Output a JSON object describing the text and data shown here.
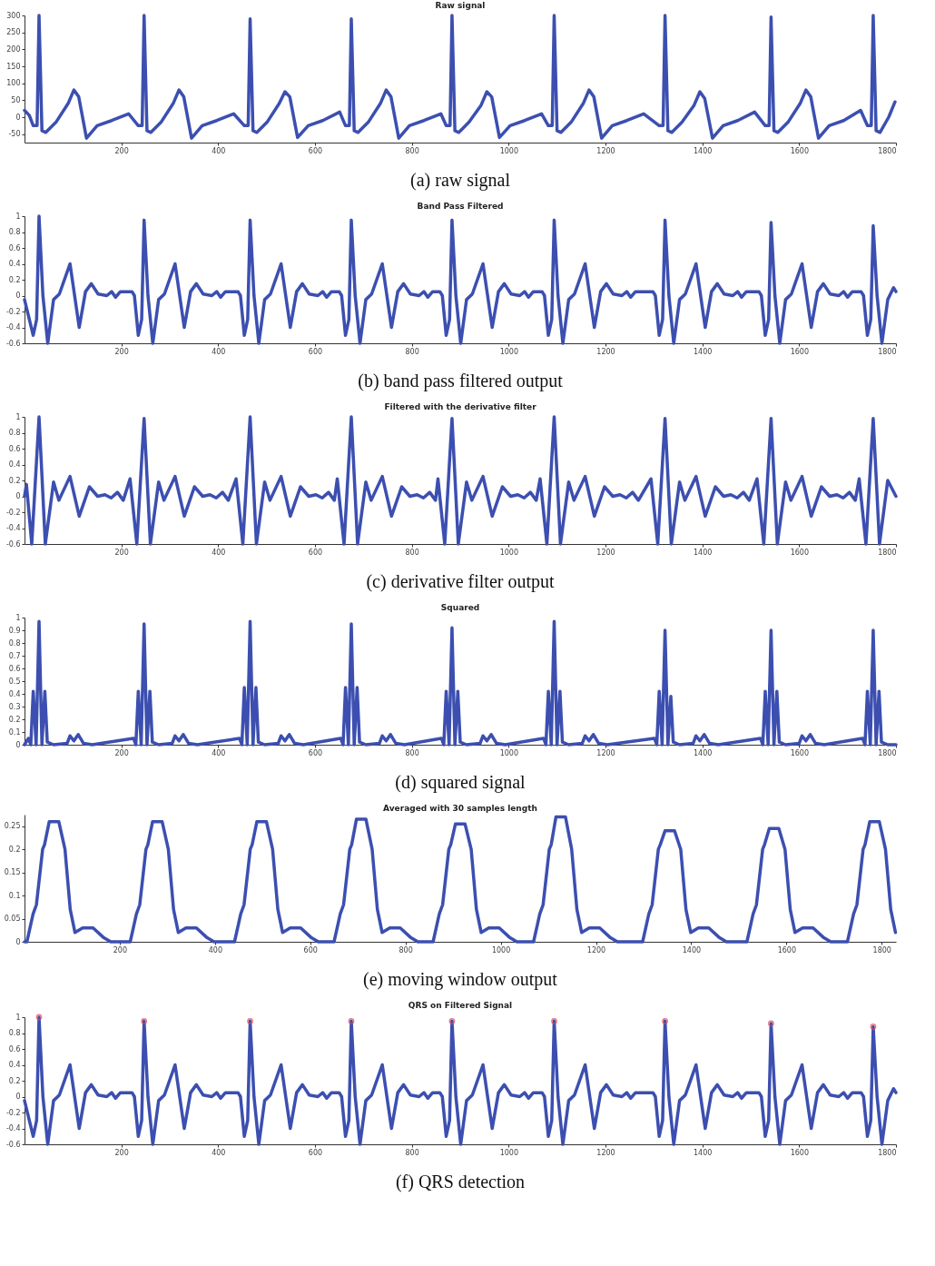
{
  "chart_data": [
    {
      "type": "line",
      "title": "Raw signal",
      "annotations": [
        "(a) raw signal"
      ],
      "xlim": [
        0,
        1800
      ],
      "xticks": [
        200,
        400,
        600,
        800,
        1000,
        1200,
        1400,
        1600,
        1800
      ],
      "ylim": [
        -75,
        300
      ],
      "yticks": [
        -50,
        0,
        50,
        100,
        150,
        200,
        250,
        300
      ],
      "series": [
        {
          "color": "#3c4fb0",
          "x": [
            0,
            10,
            18,
            26,
            30,
            36,
            44,
            65,
            90,
            102,
            112,
            128,
            150,
            180,
            215,
            235,
            243,
            247,
            253,
            261,
            282,
            307,
            319,
            329,
            345,
            367,
            397,
            432,
            454,
            462,
            466,
            472,
            480,
            501,
            526,
            538,
            548,
            564,
            586,
            616,
            651,
            663,
            671,
            675,
            681,
            689,
            710,
            735,
            747,
            757,
            773,
            795,
            825,
            860,
            871,
            879,
            883,
            889,
            897,
            918,
            943,
            955,
            965,
            981,
            1003,
            1033,
            1068,
            1082,
            1090,
            1094,
            1100,
            1108,
            1129,
            1154,
            1166,
            1176,
            1192,
            1214,
            1244,
            1279,
            1311,
            1319,
            1323,
            1329,
            1337,
            1358,
            1383,
            1395,
            1405,
            1421,
            1443,
            1473,
            1508,
            1530,
            1538,
            1542,
            1548,
            1556,
            1577,
            1602,
            1614,
            1624,
            1640,
            1662,
            1692,
            1727,
            1741,
            1749,
            1753,
            1759,
            1767,
            1785,
            1798
          ],
          "values": [
            20,
            5,
            -25,
            -25,
            300,
            -40,
            -45,
            -15,
            40,
            80,
            60,
            -62,
            -25,
            -10,
            10,
            -25,
            -25,
            300,
            -40,
            -45,
            -15,
            40,
            80,
            60,
            -62,
            -25,
            -10,
            10,
            -25,
            -25,
            290,
            -40,
            -45,
            -15,
            40,
            75,
            60,
            -60,
            -25,
            -10,
            15,
            -25,
            -25,
            290,
            -40,
            -45,
            -15,
            40,
            80,
            60,
            -62,
            -25,
            -10,
            10,
            -25,
            -25,
            300,
            -40,
            -45,
            -15,
            35,
            75,
            60,
            -60,
            -25,
            -10,
            10,
            -25,
            -25,
            300,
            -40,
            -45,
            -15,
            40,
            80,
            60,
            -62,
            -25,
            -10,
            10,
            -25,
            -25,
            300,
            -40,
            -45,
            -15,
            35,
            75,
            55,
            -62,
            -25,
            -10,
            15,
            -25,
            -25,
            295,
            -40,
            -45,
            -15,
            40,
            80,
            60,
            -62,
            -25,
            -10,
            20,
            -25,
            -25,
            300,
            -40,
            -45,
            0,
            45
          ]
        }
      ]
    },
    {
      "type": "line",
      "title": "Band Pass Filtered",
      "annotations": [
        "(b) band pass filtered output"
      ],
      "xlim": [
        0,
        1800
      ],
      "xticks": [
        200,
        400,
        600,
        800,
        1000,
        1200,
        1400,
        1600,
        1800
      ],
      "ylim": [
        -0.6,
        1
      ],
      "yticks": [
        -0.6,
        -0.4,
        -0.2,
        0,
        0.2,
        0.4,
        0.6,
        0.8,
        1
      ],
      "series": [
        {
          "color": "#3c4fb0",
          "x": [
            0,
            18,
            25,
            30,
            38,
            48,
            60,
            72,
            94,
            113,
            126,
            138,
            152,
            170,
            180,
            188,
            198,
            222,
            227,
            235,
            242,
            247,
            255,
            265,
            277,
            289,
            311,
            330,
            343,
            355,
            369,
            387,
            397,
            405,
            415,
            441,
            446,
            454,
            461,
            466,
            474,
            484,
            496,
            508,
            530,
            549,
            562,
            574,
            588,
            606,
            616,
            624,
            634,
            650,
            655,
            663,
            670,
            675,
            683,
            693,
            705,
            717,
            739,
            758,
            771,
            783,
            797,
            815,
            825,
            833,
            843,
            858,
            863,
            871,
            878,
            883,
            891,
            901,
            913,
            925,
            947,
            966,
            979,
            991,
            1005,
            1023,
            1033,
            1041,
            1051,
            1069,
            1074,
            1082,
            1089,
            1094,
            1102,
            1112,
            1124,
            1136,
            1158,
            1177,
            1190,
            1202,
            1216,
            1234,
            1244,
            1252,
            1262,
            1298,
            1303,
            1311,
            1318,
            1323,
            1331,
            1341,
            1353,
            1365,
            1387,
            1406,
            1419,
            1431,
            1445,
            1463,
            1473,
            1481,
            1491,
            1517,
            1522,
            1530,
            1537,
            1542,
            1550,
            1560,
            1572,
            1584,
            1606,
            1625,
            1638,
            1650,
            1664,
            1682,
            1692,
            1700,
            1710,
            1728,
            1733,
            1741,
            1748,
            1753,
            1761,
            1771,
            1783,
            1795,
            1800
          ],
          "values": [
            -0.05,
            -0.5,
            -0.3,
            1,
            0,
            -0.6,
            -0.05,
            0.02,
            0.4,
            -0.4,
            0.05,
            0.15,
            0.02,
            0,
            0.05,
            -0.02,
            0.05,
            0.05,
            0,
            -0.5,
            -0.3,
            0.95,
            0,
            -0.6,
            -0.05,
            0.02,
            0.4,
            -0.4,
            0.05,
            0.15,
            0.02,
            0,
            0.05,
            -0.02,
            0.05,
            0.05,
            0,
            -0.5,
            -0.3,
            0.95,
            0,
            -0.6,
            -0.05,
            0.02,
            0.4,
            -0.4,
            0.05,
            0.15,
            0.02,
            0,
            0.05,
            -0.02,
            0.05,
            0.05,
            0,
            -0.5,
            -0.3,
            0.95,
            0,
            -0.6,
            -0.05,
            0.02,
            0.4,
            -0.4,
            0.05,
            0.15,
            0.02,
            0,
            0.05,
            -0.02,
            0.05,
            0.05,
            0,
            -0.5,
            -0.3,
            0.95,
            0,
            -0.6,
            -0.05,
            0.02,
            0.4,
            -0.4,
            0.05,
            0.15,
            0.02,
            0,
            0.05,
            -0.02,
            0.05,
            0.05,
            0,
            -0.5,
            -0.3,
            0.95,
            0,
            -0.6,
            -0.05,
            0.02,
            0.4,
            -0.4,
            0.05,
            0.15,
            0.02,
            0,
            0.05,
            -0.02,
            0.05,
            0.05,
            0,
            -0.5,
            -0.3,
            0.95,
            0,
            -0.6,
            -0.05,
            0.02,
            0.4,
            -0.4,
            0.05,
            0.15,
            0.02,
            0,
            0.05,
            -0.02,
            0.05,
            0.05,
            0,
            -0.5,
            -0.3,
            0.92,
            0,
            -0.6,
            -0.05,
            0.02,
            0.4,
            -0.4,
            0.05,
            0.15,
            0.02,
            0,
            0.05,
            -0.02,
            0.05,
            0.05,
            0,
            -0.5,
            -0.3,
            0.88,
            0,
            -0.6,
            -0.05,
            0.1,
            0.05
          ]
        }
      ]
    },
    {
      "type": "line",
      "title": "Filtered with the derivative filter",
      "annotations": [
        "(c) derivative filter output"
      ],
      "xlim": [
        0,
        1800
      ],
      "xticks": [
        200,
        400,
        600,
        800,
        1000,
        1200,
        1400,
        1600,
        1800
      ],
      "ylim": [
        -0.6,
        1
      ],
      "yticks": [
        -0.6,
        -0.4,
        -0.2,
        0,
        0.2,
        0.4,
        0.6,
        0.8,
        1
      ],
      "series": [
        {
          "color": "#3c4fb0",
          "x": [
            0,
            4,
            15,
            30,
            43,
            60,
            71,
            94,
            113,
            134,
            151,
            166,
            179,
            192,
            204,
            218,
            232,
            247,
            260,
            277,
            288,
            311,
            330,
            351,
            368,
            383,
            396,
            409,
            421,
            437,
            451,
            466,
            479,
            496,
            507,
            530,
            549,
            570,
            587,
            602,
            615,
            628,
            640,
            646,
            660,
            675,
            688,
            705,
            716,
            739,
            758,
            779,
            796,
            811,
            824,
            837,
            849,
            854,
            868,
            883,
            896,
            913,
            924,
            947,
            966,
            987,
            1004,
            1019,
            1032,
            1045,
            1057,
            1065,
            1079,
            1094,
            1107,
            1124,
            1135,
            1158,
            1177,
            1198,
            1215,
            1230,
            1243,
            1256,
            1268,
            1294,
            1308,
            1323,
            1336,
            1353,
            1364,
            1387,
            1406,
            1427,
            1444,
            1459,
            1472,
            1485,
            1497,
            1513,
            1527,
            1542,
            1555,
            1572,
            1583,
            1606,
            1625,
            1646,
            1663,
            1678,
            1691,
            1704,
            1716,
            1724,
            1738,
            1753,
            1766,
            1783,
            1800
          ],
          "values": [
            0,
            0.15,
            -0.6,
            1,
            -0.6,
            0.18,
            -0.05,
            0.25,
            -0.25,
            0.12,
            0,
            0.02,
            -0.02,
            0.05,
            -0.05,
            0.22,
            -0.6,
            0.98,
            -0.6,
            0.18,
            -0.05,
            0.25,
            -0.25,
            0.12,
            0,
            0.02,
            -0.02,
            0.05,
            -0.05,
            0.22,
            -0.6,
            1,
            -0.6,
            0.18,
            -0.05,
            0.25,
            -0.25,
            0.12,
            0,
            0.02,
            -0.02,
            0.05,
            -0.05,
            0.22,
            -0.6,
            1,
            -0.6,
            0.18,
            -0.05,
            0.25,
            -0.25,
            0.12,
            0,
            0.02,
            -0.02,
            0.05,
            -0.05,
            0.22,
            -0.6,
            0.98,
            -0.6,
            0.18,
            -0.05,
            0.25,
            -0.25,
            0.12,
            0,
            0.02,
            -0.02,
            0.05,
            -0.05,
            0.22,
            -0.6,
            1,
            -0.6,
            0.18,
            -0.05,
            0.25,
            -0.25,
            0.12,
            0,
            0.02,
            -0.02,
            0.05,
            -0.05,
            0.22,
            -0.6,
            0.98,
            -0.6,
            0.18,
            -0.05,
            0.25,
            -0.25,
            0.12,
            0,
            0.02,
            -0.02,
            0.05,
            -0.05,
            0.22,
            -0.6,
            0.98,
            -0.6,
            0.18,
            -0.05,
            0.25,
            -0.25,
            0.12,
            0,
            0.02,
            -0.02,
            0.05,
            -0.05,
            0.22,
            -0.6,
            0.98,
            -0.6,
            0.2,
            0
          ]
        }
      ]
    },
    {
      "type": "line",
      "title": "Squared",
      "annotations": [
        "(d) squared signal"
      ],
      "xlim": [
        0,
        1800
      ],
      "xticks": [
        200,
        400,
        600,
        800,
        1000,
        1200,
        1400,
        1600,
        1800
      ],
      "ylim": [
        0,
        1
      ],
      "yticks": [
        0,
        0.1,
        0.2,
        0.3,
        0.4,
        0.5,
        0.6,
        0.7,
        0.8,
        0.9,
        1
      ],
      "series": [
        {
          "color": "#3c4fb0",
          "x": [
            0,
            8,
            13,
            18,
            24,
            30,
            36,
            42,
            47,
            60,
            88,
            94,
            102,
            111,
            122,
            140,
            225,
            230,
            235,
            241,
            247,
            253,
            259,
            264,
            277,
            305,
            311,
            319,
            328,
            339,
            357,
            444,
            449,
            454,
            460,
            466,
            472,
            478,
            483,
            496,
            524,
            530,
            538,
            547,
            558,
            576,
            653,
            658,
            663,
            669,
            675,
            681,
            687,
            692,
            705,
            733,
            739,
            747,
            756,
            767,
            785,
            861,
            866,
            871,
            877,
            883,
            889,
            895,
            900,
            913,
            941,
            947,
            955,
            964,
            975,
            993,
            1072,
            1077,
            1082,
            1088,
            1094,
            1100,
            1106,
            1111,
            1124,
            1152,
            1158,
            1166,
            1175,
            1186,
            1204,
            1301,
            1306,
            1311,
            1317,
            1323,
            1329,
            1335,
            1340,
            1353,
            1381,
            1387,
            1395,
            1404,
            1415,
            1433,
            1520,
            1525,
            1530,
            1536,
            1542,
            1548,
            1554,
            1559,
            1572,
            1600,
            1606,
            1614,
            1623,
            1634,
            1652,
            1731,
            1736,
            1741,
            1747,
            1753,
            1759,
            1765,
            1770,
            1783,
            1800
          ],
          "values": [
            0,
            0.05,
            0,
            0.42,
            0,
            0.97,
            0,
            0.42,
            0.02,
            0,
            0.01,
            0.07,
            0.03,
            0.08,
            0.01,
            0,
            0.05,
            0,
            0.42,
            0,
            0.95,
            0,
            0.42,
            0.02,
            0,
            0.01,
            0.07,
            0.03,
            0.08,
            0.01,
            0,
            0.05,
            0,
            0.45,
            0,
            0.97,
            0,
            0.45,
            0.02,
            0,
            0.01,
            0.07,
            0.03,
            0.08,
            0.01,
            0,
            0.05,
            0,
            0.45,
            0,
            0.95,
            0,
            0.45,
            0.02,
            0,
            0.01,
            0.07,
            0.03,
            0.08,
            0.01,
            0,
            0.05,
            0,
            0.42,
            0,
            0.92,
            0,
            0.42,
            0.02,
            0,
            0.01,
            0.07,
            0.03,
            0.08,
            0.01,
            0,
            0.05,
            0,
            0.42,
            0,
            0.97,
            0,
            0.42,
            0.02,
            0,
            0.01,
            0.07,
            0.03,
            0.08,
            0.01,
            0,
            0.05,
            0,
            0.42,
            0,
            0.9,
            0,
            0.38,
            0.02,
            0,
            0.01,
            0.07,
            0.03,
            0.08,
            0.01,
            0,
            0.05,
            0,
            0.42,
            0,
            0.9,
            0,
            0.42,
            0.02,
            0,
            0.01,
            0.07,
            0.03,
            0.08,
            0.01,
            0,
            0.05,
            0,
            0.42,
            0,
            0.9,
            0,
            0.42,
            0.02,
            0,
            0
          ]
        }
      ]
    },
    {
      "type": "line",
      "title": "Averaged with 30 samples length",
      "annotations": [
        "(e) moving window output"
      ],
      "xlim": [
        0,
        1830
      ],
      "xticks": [
        200,
        400,
        600,
        800,
        1000,
        1200,
        1400,
        1600,
        1800
      ],
      "ylim": [
        0,
        0.275
      ],
      "yticks": [
        0,
        0.05,
        0.1,
        0.15,
        0.2,
        0.25
      ],
      "series": [
        {
          "color": "#3c4fb0",
          "x": [
            0,
            5,
            18,
            25,
            38,
            42,
            52,
            72,
            85,
            96,
            106,
            122,
            144,
            165,
            181,
            222,
            235,
            242,
            255,
            259,
            269,
            289,
            302,
            313,
            323,
            339,
            361,
            382,
            398,
            441,
            454,
            461,
            474,
            478,
            488,
            508,
            521,
            532,
            542,
            558,
            580,
            601,
            617,
            650,
            663,
            670,
            683,
            687,
            697,
            717,
            730,
            741,
            751,
            767,
            789,
            810,
            826,
            858,
            871,
            878,
            891,
            895,
            905,
            925,
            938,
            949,
            959,
            975,
            997,
            1018,
            1034,
            1069,
            1082,
            1089,
            1102,
            1106,
            1116,
            1136,
            1149,
            1160,
            1170,
            1186,
            1208,
            1229,
            1245,
            1298,
            1311,
            1318,
            1331,
            1335,
            1345,
            1365,
            1378,
            1389,
            1399,
            1415,
            1437,
            1458,
            1474,
            1517,
            1530,
            1537,
            1550,
            1554,
            1564,
            1584,
            1597,
            1608,
            1618,
            1634,
            1656,
            1677,
            1693,
            1728,
            1741,
            1748,
            1761,
            1765,
            1775,
            1795,
            1808,
            1819,
            1829
          ],
          "values": [
            0,
            0,
            0.06,
            0.08,
            0.2,
            0.21,
            0.26,
            0.26,
            0.2,
            0.07,
            0.02,
            0.03,
            0.03,
            0.01,
            0,
            0,
            0.06,
            0.08,
            0.2,
            0.21,
            0.26,
            0.26,
            0.2,
            0.07,
            0.02,
            0.03,
            0.03,
            0.01,
            0,
            0,
            0.06,
            0.08,
            0.2,
            0.21,
            0.26,
            0.26,
            0.2,
            0.07,
            0.02,
            0.03,
            0.03,
            0.01,
            0,
            0,
            0.06,
            0.08,
            0.2,
            0.21,
            0.265,
            0.265,
            0.2,
            0.07,
            0.02,
            0.03,
            0.03,
            0.01,
            0,
            0,
            0.06,
            0.08,
            0.2,
            0.21,
            0.255,
            0.255,
            0.2,
            0.07,
            0.02,
            0.03,
            0.03,
            0.01,
            0,
            0,
            0.06,
            0.08,
            0.2,
            0.21,
            0.27,
            0.27,
            0.2,
            0.07,
            0.02,
            0.03,
            0.03,
            0.01,
            0,
            0,
            0.06,
            0.08,
            0.2,
            0.21,
            0.24,
            0.24,
            0.2,
            0.07,
            0.02,
            0.03,
            0.03,
            0.01,
            0,
            0,
            0.06,
            0.08,
            0.2,
            0.21,
            0.245,
            0.245,
            0.2,
            0.07,
            0.02,
            0.03,
            0.03,
            0.01,
            0,
            0,
            0.06,
            0.08,
            0.2,
            0.21,
            0.26,
            0.26,
            0.2,
            0.07,
            0.02
          ]
        }
      ]
    },
    {
      "type": "line",
      "title": "QRS on Filtered Signal",
      "annotations": [
        "(f) QRS detection"
      ],
      "xlim": [
        0,
        1800
      ],
      "xticks": [
        200,
        400,
        600,
        800,
        1000,
        1200,
        1400,
        1600,
        1800
      ],
      "ylim": [
        -0.6,
        1
      ],
      "yticks": [
        -0.6,
        -0.4,
        -0.2,
        0,
        0.2,
        0.4,
        0.6,
        0.8,
        1
      ],
      "series": [
        {
          "color": "#3c4fb0",
          "x": [
            0,
            18,
            25,
            30,
            38,
            48,
            60,
            72,
            94,
            113,
            126,
            138,
            152,
            170,
            180,
            188,
            198,
            222,
            227,
            235,
            242,
            247,
            255,
            265,
            277,
            289,
            311,
            330,
            343,
            355,
            369,
            387,
            397,
            405,
            415,
            441,
            446,
            454,
            461,
            466,
            474,
            484,
            496,
            508,
            530,
            549,
            562,
            574,
            588,
            606,
            616,
            624,
            634,
            650,
            655,
            663,
            670,
            675,
            683,
            693,
            705,
            717,
            739,
            758,
            771,
            783,
            797,
            815,
            825,
            833,
            843,
            858,
            863,
            871,
            878,
            883,
            891,
            901,
            913,
            925,
            947,
            966,
            979,
            991,
            1005,
            1023,
            1033,
            1041,
            1051,
            1069,
            1074,
            1082,
            1089,
            1094,
            1102,
            1112,
            1124,
            1136,
            1158,
            1177,
            1190,
            1202,
            1216,
            1234,
            1244,
            1252,
            1262,
            1298,
            1303,
            1311,
            1318,
            1323,
            1331,
            1341,
            1353,
            1365,
            1387,
            1406,
            1419,
            1431,
            1445,
            1463,
            1473,
            1481,
            1491,
            1517,
            1522,
            1530,
            1537,
            1542,
            1550,
            1560,
            1572,
            1584,
            1606,
            1625,
            1638,
            1650,
            1664,
            1682,
            1692,
            1700,
            1710,
            1728,
            1733,
            1741,
            1748,
            1753,
            1761,
            1771,
            1783,
            1795,
            1800
          ],
          "values": [
            -0.05,
            -0.5,
            -0.3,
            1,
            0,
            -0.6,
            -0.05,
            0.02,
            0.4,
            -0.4,
            0.05,
            0.15,
            0.02,
            0,
            0.05,
            -0.02,
            0.05,
            0.05,
            0,
            -0.5,
            -0.3,
            0.95,
            0,
            -0.6,
            -0.05,
            0.02,
            0.4,
            -0.4,
            0.05,
            0.15,
            0.02,
            0,
            0.05,
            -0.02,
            0.05,
            0.05,
            0,
            -0.5,
            -0.3,
            0.95,
            0,
            -0.6,
            -0.05,
            0.02,
            0.4,
            -0.4,
            0.05,
            0.15,
            0.02,
            0,
            0.05,
            -0.02,
            0.05,
            0.05,
            0,
            -0.5,
            -0.3,
            0.95,
            0,
            -0.6,
            -0.05,
            0.02,
            0.4,
            -0.4,
            0.05,
            0.15,
            0.02,
            0,
            0.05,
            -0.02,
            0.05,
            0.05,
            0,
            -0.5,
            -0.3,
            0.95,
            0,
            -0.6,
            -0.05,
            0.02,
            0.4,
            -0.4,
            0.05,
            0.15,
            0.02,
            0,
            0.05,
            -0.02,
            0.05,
            0.05,
            0,
            -0.5,
            -0.3,
            0.95,
            0,
            -0.6,
            -0.05,
            0.02,
            0.4,
            -0.4,
            0.05,
            0.15,
            0.02,
            0,
            0.05,
            -0.02,
            0.05,
            0.05,
            0,
            -0.5,
            -0.3,
            0.95,
            0,
            -0.6,
            -0.05,
            0.02,
            0.4,
            -0.4,
            0.05,
            0.15,
            0.02,
            0,
            0.05,
            -0.02,
            0.05,
            0.05,
            0,
            -0.5,
            -0.3,
            0.92,
            0,
            -0.6,
            -0.05,
            0.02,
            0.4,
            -0.4,
            0.05,
            0.15,
            0.02,
            0,
            0.05,
            -0.02,
            0.05,
            0.05,
            0,
            -0.5,
            -0.3,
            0.88,
            0,
            -0.6,
            -0.05,
            0.1,
            0.05
          ]
        },
        {
          "type": "scatter",
          "marker": "circle",
          "color": "#e8464a",
          "x": [
            30,
            247,
            466,
            675,
            883,
            1094,
            1323,
            1542,
            1753
          ],
          "values": [
            1,
            0.95,
            0.95,
            0.95,
            0.95,
            0.95,
            0.95,
            0.92,
            0.88
          ]
        }
      ]
    }
  ]
}
